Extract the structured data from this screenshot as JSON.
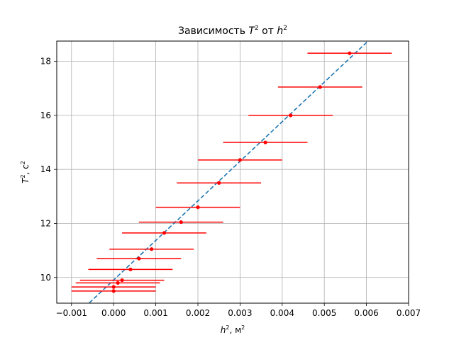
{
  "chart_data": {
    "type": "scatter",
    "title_main": "Зависимость ",
    "title_var1": "T",
    "title_sup1": "2",
    "title_mid": " от ",
    "title_var2": "h",
    "title_sup2": "2",
    "xlabel_var": "h",
    "xlabel_sup": "2",
    "xlabel_unit": ", м",
    "xlabel_unit_sup": "2",
    "ylabel_var": "T",
    "ylabel_sup": "2",
    "ylabel_unit": ", с",
    "ylabel_unit_sup": "2",
    "xlim": [
      -0.00135,
      0.007
    ],
    "ylim": [
      9.05,
      18.75
    ],
    "xticks": [
      -0.001,
      0.0,
      0.001,
      0.002,
      0.003,
      0.004,
      0.005,
      0.006,
      0.007
    ],
    "xtick_labels": [
      "−0.001",
      "0.000",
      "0.001",
      "0.002",
      "0.003",
      "0.004",
      "0.005",
      "0.006",
      "0.007"
    ],
    "yticks": [
      10,
      12,
      14,
      16,
      18
    ],
    "ytick_labels": [
      "10",
      "12",
      "14",
      "16",
      "18"
    ],
    "grid": true,
    "series": [
      {
        "kind": "errorbar",
        "color": "#ff0000",
        "points": [
          {
            "x": 0.0,
            "y": 9.5,
            "xerr": 0.001
          },
          {
            "x": 0.0,
            "y": 9.65,
            "xerr": 0.001
          },
          {
            "x": 0.0001,
            "y": 9.8,
            "xerr": 0.001
          },
          {
            "x": 0.0002,
            "y": 9.9,
            "xerr": 0.001
          },
          {
            "x": 0.0004,
            "y": 10.3,
            "xerr": 0.001
          },
          {
            "x": 0.0006,
            "y": 10.7,
            "xerr": 0.001
          },
          {
            "x": 0.0009,
            "y": 11.05,
            "xerr": 0.001
          },
          {
            "x": 0.0012,
            "y": 11.65,
            "xerr": 0.001
          },
          {
            "x": 0.0016,
            "y": 12.05,
            "xerr": 0.001
          },
          {
            "x": 0.002,
            "y": 12.6,
            "xerr": 0.001
          },
          {
            "x": 0.0025,
            "y": 13.5,
            "xerr": 0.001
          },
          {
            "x": 0.003,
            "y": 14.35,
            "xerr": 0.001
          },
          {
            "x": 0.0036,
            "y": 15.0,
            "xerr": 0.001
          },
          {
            "x": 0.0042,
            "y": 16.0,
            "xerr": 0.001
          },
          {
            "x": 0.0049,
            "y": 17.05,
            "xerr": 0.001
          },
          {
            "x": 0.0056,
            "y": 18.3,
            "xerr": 0.001
          }
        ]
      },
      {
        "kind": "fit-line",
        "style": "dashed",
        "color": "#1f77b4",
        "x": [
          -0.00135,
          0.007
        ],
        "y": [
          7.93,
          20.16
        ]
      }
    ]
  }
}
